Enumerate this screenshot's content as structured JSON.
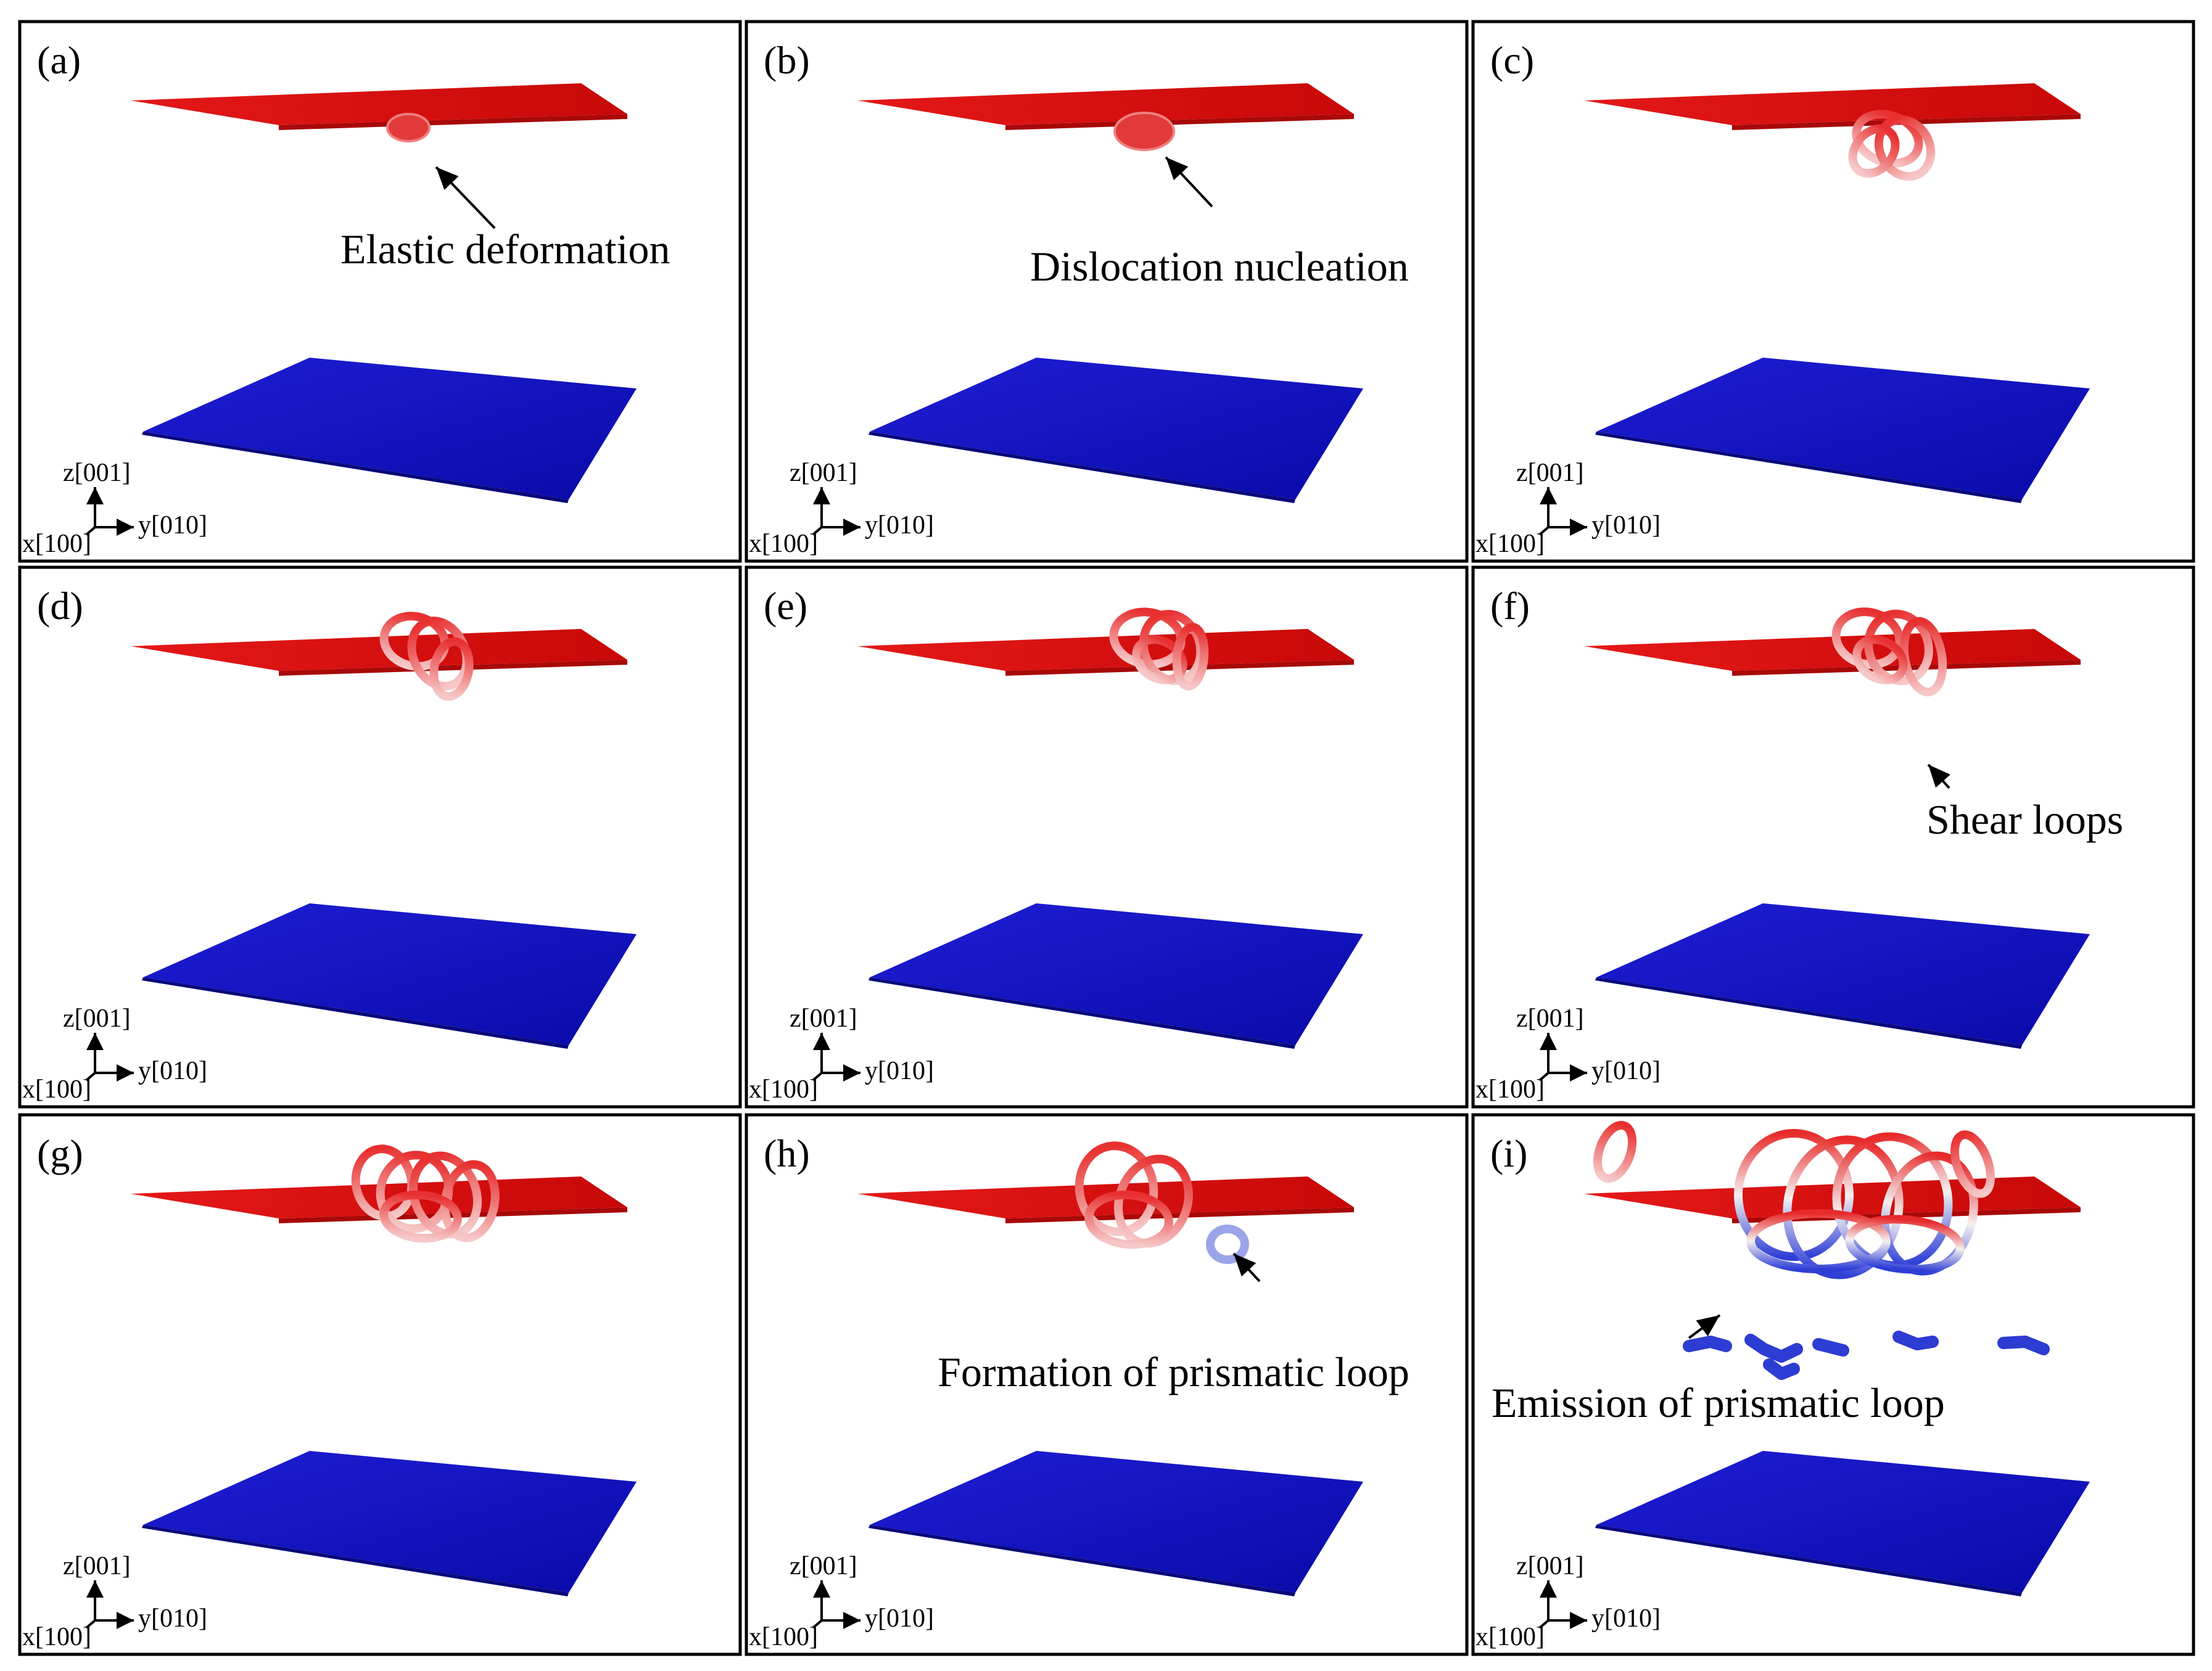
{
  "figure": {
    "colors": {
      "top_plate": "#e01010",
      "bottom_plate": "#1414c8",
      "loop_red": "#e83c3c",
      "loop_light": "#f4b8b8",
      "loop_blue": "#3040d8"
    },
    "axes": {
      "z": "z[001]",
      "y": "y[010]",
      "x": "x[100]"
    },
    "panels": [
      {
        "label": "(a)",
        "annotation": "Elastic deformation"
      },
      {
        "label": "(b)",
        "annotation": "Dislocation nucleation"
      },
      {
        "label": "(c)",
        "annotation": ""
      },
      {
        "label": "(d)",
        "annotation": ""
      },
      {
        "label": "(e)",
        "annotation": ""
      },
      {
        "label": "(f)",
        "annotation": "Shear loops"
      },
      {
        "label": "(g)",
        "annotation": ""
      },
      {
        "label": "(h)",
        "annotation": "Formation of prismatic loop"
      },
      {
        "label": "(i)",
        "annotation": "Emission of prismatic loop"
      }
    ]
  }
}
